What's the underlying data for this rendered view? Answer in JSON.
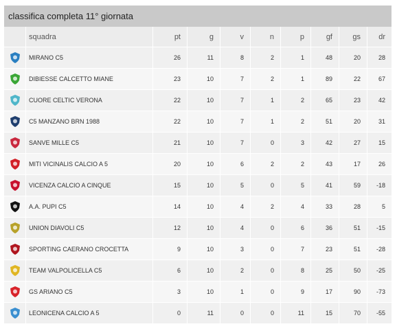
{
  "title": "classifica completa 11° giornata",
  "columns": {
    "team": "squadra",
    "pt": "pt",
    "g": "g",
    "v": "v",
    "n": "n",
    "p": "p",
    "gf": "gf",
    "gs": "gs",
    "dr": "dr"
  },
  "rows": [
    {
      "team": "MIRANO C5",
      "pt": "26",
      "g": "11",
      "v": "8",
      "n": "2",
      "p": "1",
      "gf": "48",
      "gs": "20",
      "dr": "28",
      "logo_icon": "mirano-c5-logo-icon",
      "logo_color": "#2a7fc1"
    },
    {
      "team": "DIBIESSE CALCETTO MIANE",
      "pt": "23",
      "g": "10",
      "v": "7",
      "n": "2",
      "p": "1",
      "gf": "89",
      "gs": "22",
      "dr": "67",
      "logo_icon": "dibiesse-calcetto-miane-logo-icon",
      "logo_color": "#3aa636"
    },
    {
      "team": "CUORE CELTIC VERONA",
      "pt": "22",
      "g": "10",
      "v": "7",
      "n": "1",
      "p": "2",
      "gf": "65",
      "gs": "23",
      "dr": "42",
      "logo_icon": "cuore-celtic-verona-logo-icon",
      "logo_color": "#4fb6c9"
    },
    {
      "team": "C5 MANZANO BRN 1988",
      "pt": "22",
      "g": "10",
      "v": "7",
      "n": "1",
      "p": "2",
      "gf": "51",
      "gs": "20",
      "dr": "31",
      "logo_icon": "c5-manzano-brn-logo-icon",
      "logo_color": "#1f3e6e"
    },
    {
      "team": "SANVE MILLE C5",
      "pt": "21",
      "g": "10",
      "v": "7",
      "n": "0",
      "p": "3",
      "gf": "42",
      "gs": "27",
      "dr": "15",
      "logo_icon": "sanve-mille-c5-logo-icon",
      "logo_color": "#c9283e"
    },
    {
      "team": "MITI VICINALIS CALCIO A 5",
      "pt": "20",
      "g": "10",
      "v": "6",
      "n": "2",
      "p": "2",
      "gf": "43",
      "gs": "17",
      "dr": "26",
      "logo_icon": "miti-vicinalis-logo-icon",
      "logo_color": "#d22027"
    },
    {
      "team": "VICENZA CALCIO A CINQUE",
      "pt": "15",
      "g": "10",
      "v": "5",
      "n": "0",
      "p": "5",
      "gf": "41",
      "gs": "59",
      "dr": "-18",
      "logo_icon": "vicenza-calcio-a-cinque-logo-icon",
      "logo_color": "#c8102e"
    },
    {
      "team": "A.A. PUPI C5",
      "pt": "14",
      "g": "10",
      "v": "4",
      "n": "2",
      "p": "4",
      "gf": "33",
      "gs": "28",
      "dr": "5",
      "logo_icon": "aa-pupi-c5-logo-icon",
      "logo_color": "#111111"
    },
    {
      "team": "UNION DIAVOLI C5",
      "pt": "12",
      "g": "10",
      "v": "4",
      "n": "0",
      "p": "6",
      "gf": "36",
      "gs": "51",
      "dr": "-15",
      "logo_icon": "union-diavoli-c5-logo-icon",
      "logo_color": "#b8a22a"
    },
    {
      "team": "SPORTING CAERANO CROCETTA",
      "pt": "9",
      "g": "10",
      "v": "3",
      "n": "0",
      "p": "7",
      "gf": "23",
      "gs": "51",
      "dr": "-28",
      "logo_icon": "sporting-caerano-crocetta-logo-icon",
      "logo_color": "#b0161f"
    },
    {
      "team": "TEAM VALPOLICELLA C5",
      "pt": "6",
      "g": "10",
      "v": "2",
      "n": "0",
      "p": "8",
      "gf": "25",
      "gs": "50",
      "dr": "-25",
      "logo_icon": "team-valpolicella-c5-logo-icon",
      "logo_color": "#e0b623"
    },
    {
      "team": "GS ARIANO C5",
      "pt": "3",
      "g": "10",
      "v": "1",
      "n": "0",
      "p": "9",
      "gf": "17",
      "gs": "90",
      "dr": "-73",
      "logo_icon": "gs-ariano-c5-logo-icon",
      "logo_color": "#d8232a"
    },
    {
      "team": "LEONICENA CALCIO A 5",
      "pt": "0",
      "g": "11",
      "v": "0",
      "n": "0",
      "p": "11",
      "gf": "15",
      "gs": "70",
      "dr": "-55",
      "logo_icon": "leonicena-calcio-a5-logo-icon",
      "logo_color": "#3b8fd0"
    }
  ]
}
